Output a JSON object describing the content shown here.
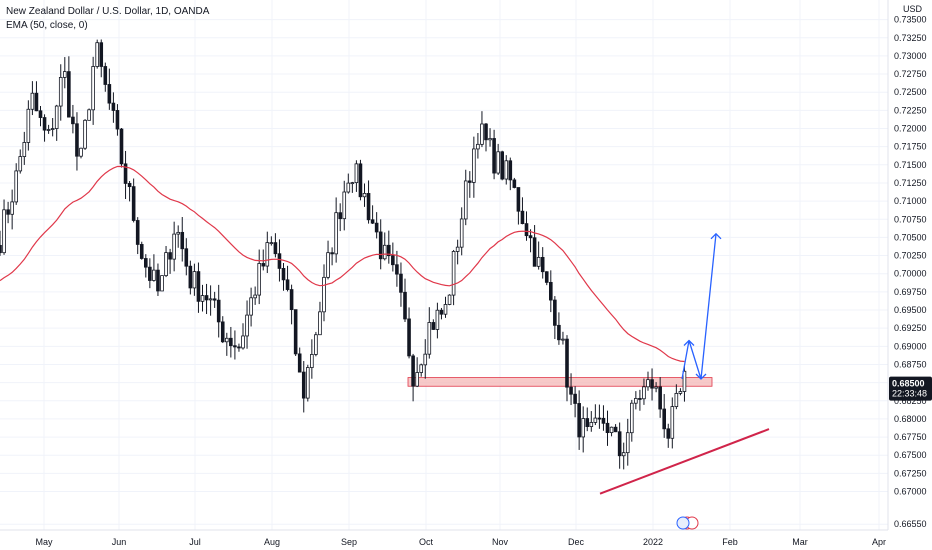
{
  "legend": {
    "symbol_line": "New Zealand Dollar / U.S. Dollar, 1D, OANDA",
    "indicator_line": "EMA (50, close, 0)"
  },
  "price_scale": {
    "currency": "USD",
    "current_price": "0.68500",
    "countdown": "22:33:48"
  },
  "colors": {
    "candle": "#131722",
    "ema": "#e0384a",
    "zone_fill": "#f4b7b5",
    "zone_border": "#e0384a",
    "trendline": "#d0244a",
    "projection": "#2962ff",
    "price_tag_bg": "#131722"
  },
  "chart_data": {
    "type": "candlestick",
    "title": "New Zealand Dollar / U.S. Dollar, 1D, OANDA",
    "ylabel": "USD",
    "ylim": [
      0.6647,
      0.7377
    ],
    "y_ticks": [
      0.6655,
      0.67,
      0.6725,
      0.675,
      0.6775,
      0.68,
      0.6825,
      0.685,
      0.6875,
      0.69,
      0.6925,
      0.695,
      0.6975,
      0.7,
      0.7025,
      0.705,
      0.7075,
      0.71,
      0.7125,
      0.715,
      0.7175,
      0.72,
      0.7225,
      0.725,
      0.7275,
      0.73,
      0.7325,
      0.735
    ],
    "x_ticks": [
      "May",
      "Jun",
      "Jul",
      "Aug",
      "Sep",
      "Oct",
      "Nov",
      "Dec",
      "2022",
      "Feb",
      "Mar",
      "Apr"
    ],
    "close_anchors": [
      {
        "month": "Apr",
        "close": 0.705
      },
      {
        "month": "Apr",
        "close": 0.713
      },
      {
        "month": "May",
        "close": 0.724
      },
      {
        "month": "May",
        "close": 0.718
      },
      {
        "month": "May",
        "close": 0.728
      },
      {
        "month": "May",
        "close": 0.714
      },
      {
        "month": "Jun",
        "close": 0.731
      },
      {
        "month": "Jun",
        "close": 0.722
      },
      {
        "month": "Jun",
        "close": 0.712
      },
      {
        "month": "Jun",
        "close": 0.702
      },
      {
        "month": "Jun",
        "close": 0.697
      },
      {
        "month": "Jul",
        "close": 0.707
      },
      {
        "month": "Jul",
        "close": 0.699
      },
      {
        "month": "Jul",
        "close": 0.697
      },
      {
        "month": "Jul",
        "close": 0.692
      },
      {
        "month": "Jul",
        "close": 0.69
      },
      {
        "month": "Aug",
        "close": 0.698
      },
      {
        "month": "Aug",
        "close": 0.704
      },
      {
        "month": "Aug",
        "close": 0.698
      },
      {
        "month": "Aug",
        "close": 0.683
      },
      {
        "month": "Aug",
        "close": 0.694
      },
      {
        "month": "Sep",
        "close": 0.706
      },
      {
        "month": "Sep",
        "close": 0.715
      },
      {
        "month": "Sep",
        "close": 0.71
      },
      {
        "month": "Sep",
        "close": 0.703
      },
      {
        "month": "Sep",
        "close": 0.698
      },
      {
        "month": "Oct",
        "close": 0.686
      },
      {
        "month": "Oct",
        "close": 0.693
      },
      {
        "month": "Oct",
        "close": 0.695
      },
      {
        "month": "Oct",
        "close": 0.708
      },
      {
        "month": "Oct",
        "close": 0.72
      },
      {
        "month": "Nov",
        "close": 0.716
      },
      {
        "month": "Nov",
        "close": 0.713
      },
      {
        "month": "Nov",
        "close": 0.707
      },
      {
        "month": "Nov",
        "close": 0.7
      },
      {
        "month": "Nov",
        "close": 0.694
      },
      {
        "month": "Dec",
        "close": 0.681
      },
      {
        "month": "Dec",
        "close": 0.677
      },
      {
        "month": "Dec",
        "close": 0.68
      },
      {
        "month": "Dec",
        "close": 0.675
      },
      {
        "month": "Jan",
        "close": 0.683
      },
      {
        "month": "Jan",
        "close": 0.685
      },
      {
        "month": "Jan",
        "close": 0.678
      },
      {
        "month": "Jan",
        "close": 0.685
      }
    ],
    "ema_period": 50,
    "annotations": {
      "resistance_zone": {
        "low": 0.6845,
        "high": 0.6857,
        "from": "late Sep",
        "to": "end Jan"
      },
      "support_trendline": [
        {
          "at": "mid Dec",
          "price": 0.6697
        },
        {
          "at": "early Mar",
          "price": 0.6786
        }
      ],
      "projection_path": [
        0.6855,
        0.6908,
        0.6855,
        0.7055
      ]
    }
  }
}
